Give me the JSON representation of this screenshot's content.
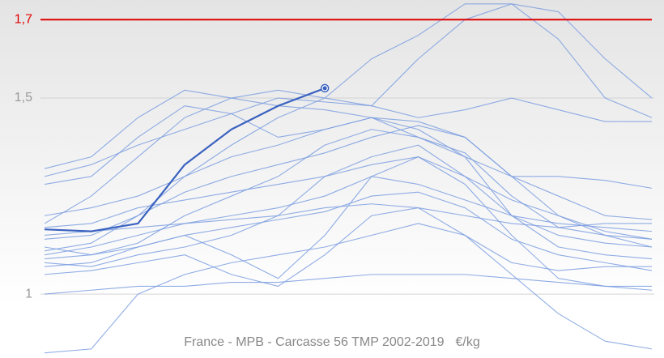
{
  "chart_data": {
    "type": "line",
    "title": "France - MPB - Carcasse 56 TMP 2002-2019",
    "unit": "€/kg",
    "categories": [
      null,
      null,
      null,
      null,
      null,
      null,
      null,
      null,
      null,
      null,
      null,
      null,
      null,
      null
    ],
    "ylim": [
      0.837,
      1.75
    ],
    "yticks": [
      1,
      {
        "value": 1.5,
        "label": "1,5"
      }
    ],
    "grid": true,
    "reference_line": {
      "value": 1.7,
      "label": "1,7",
      "color": "#e00000"
    },
    "series": [
      {
        "color": "#3a62c0",
        "highlight": true,
        "values": [
          1.165,
          1.16,
          1.18,
          1.33,
          1.42,
          1.48,
          1.525,
          null,
          null,
          null,
          null,
          null,
          null,
          null
        ]
      },
      {
        "color": "#7b9de0",
        "values": [
          1.2,
          1.22,
          1.25,
          1.3,
          1.38,
          1.45,
          1.5,
          1.6,
          1.66,
          1.74,
          1.74,
          1.65,
          1.5,
          1.45
        ]
      },
      {
        "color": "#7b9de0",
        "values": [
          1.18,
          1.25,
          1.35,
          1.45,
          1.5,
          1.52,
          1.5,
          1.48,
          1.6,
          1.7,
          1.74,
          1.72,
          1.6,
          1.5
        ]
      },
      {
        "color": "#7b9de0",
        "values": [
          1.0,
          1.01,
          1.02,
          1.02,
          1.03,
          1.03,
          1.04,
          1.05,
          1.05,
          1.05,
          1.04,
          1.03,
          1.02,
          1.01
        ]
      },
      {
        "color": "#7b9de0",
        "values": [
          0.85,
          0.86,
          1.0,
          1.05,
          1.08,
          1.1,
          1.12,
          1.15,
          1.18,
          1.15,
          1.05,
          0.95,
          0.88,
          0.86
        ]
      },
      {
        "color": "#7b9de0",
        "values": [
          1.32,
          1.35,
          1.45,
          1.52,
          1.5,
          1.48,
          1.47,
          1.45,
          1.44,
          1.4,
          1.3,
          1.2,
          1.15,
          1.12
        ]
      },
      {
        "color": "#7b9de0",
        "values": [
          1.3,
          1.33,
          1.38,
          1.42,
          1.46,
          1.5,
          1.49,
          1.48,
          1.45,
          1.47,
          1.5,
          1.47,
          1.44,
          1.44
        ]
      },
      {
        "color": "#7b9de0",
        "values": [
          1.12,
          1.1,
          1.13,
          1.2,
          1.25,
          1.3,
          1.38,
          1.42,
          1.4,
          1.36,
          1.25,
          1.17,
          1.15,
          1.14
        ]
      },
      {
        "color": "#7b9de0",
        "values": [
          1.08,
          1.07,
          1.1,
          1.12,
          1.15,
          1.2,
          1.3,
          1.35,
          1.38,
          1.3,
          1.2,
          1.12,
          1.1,
          1.09
        ]
      },
      {
        "color": "#7b9de0",
        "values": [
          1.1,
          1.12,
          1.15,
          1.18,
          1.2,
          1.22,
          1.25,
          1.3,
          1.28,
          1.24,
          1.2,
          1.18,
          1.17,
          1.16
        ]
      },
      {
        "color": "#7b9de0",
        "values": [
          1.05,
          1.06,
          1.08,
          1.1,
          1.05,
          1.02,
          1.1,
          1.2,
          1.22,
          1.15,
          1.08,
          1.06,
          1.07,
          1.07
        ]
      },
      {
        "color": "#7b9de0",
        "values": [
          1.28,
          1.3,
          1.4,
          1.48,
          1.46,
          1.4,
          1.42,
          1.45,
          1.4,
          1.35,
          1.3,
          1.3,
          1.29,
          1.27
        ]
      },
      {
        "color": "#7b9de0",
        "values": [
          1.15,
          1.16,
          1.17,
          1.18,
          1.19,
          1.2,
          1.22,
          1.23,
          1.22,
          1.2,
          1.18,
          1.17,
          1.18,
          1.18
        ]
      },
      {
        "color": "#7b9de0",
        "values": [
          1.07,
          1.08,
          1.12,
          1.15,
          1.1,
          1.04,
          1.15,
          1.3,
          1.35,
          1.28,
          1.15,
          1.04,
          1.02,
          1.02
        ]
      },
      {
        "color": "#7b9de0",
        "values": [
          1.14,
          1.15,
          1.2,
          1.3,
          1.35,
          1.38,
          1.42,
          1.45,
          1.42,
          1.35,
          1.2,
          1.15,
          1.13,
          1.12
        ]
      },
      {
        "color": "#7b9de0",
        "values": [
          1.09,
          1.1,
          1.12,
          1.15,
          1.17,
          1.19,
          1.21,
          1.25,
          1.26,
          1.22,
          1.14,
          1.1,
          1.08,
          1.06
        ]
      },
      {
        "color": "#7b9de0",
        "values": [
          1.11,
          1.13,
          1.2,
          1.26,
          1.3,
          1.33,
          1.36,
          1.4,
          1.43,
          1.4,
          1.3,
          1.25,
          1.2,
          1.19
        ]
      },
      {
        "color": "#7b9de0",
        "values": [
          1.17,
          1.18,
          1.22,
          1.24,
          1.26,
          1.28,
          1.3,
          1.33,
          1.35,
          1.3,
          1.24,
          1.2,
          1.16,
          1.14
        ]
      }
    ]
  }
}
